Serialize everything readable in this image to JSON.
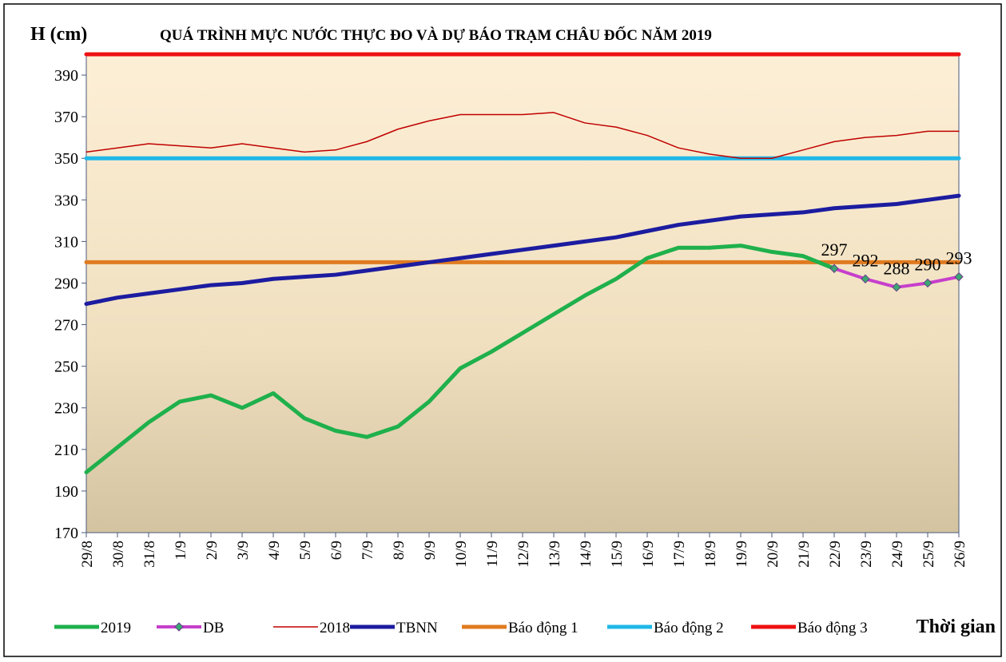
{
  "chart_data": {
    "type": "line",
    "title": "QUÁ TRÌNH MỰC NƯỚC THỰC ĐO VÀ DỰ BÁO TRẠM CHÂU ĐỐC NĂM 2019",
    "y_label": "H (cm)",
    "x_label": "Thời gian",
    "categories": [
      "29/8",
      "30/8",
      "31/8",
      "1/9",
      "2/9",
      "3/9",
      "4/9",
      "5/9",
      "6/9",
      "7/9",
      "8/9",
      "9/9",
      "10/9",
      "11/9",
      "12/9",
      "13/9",
      "14/9",
      "15/9",
      "16/9",
      "17/9",
      "18/9",
      "19/9",
      "20/9",
      "21/9",
      "22/9",
      "23/9",
      "24/9",
      "25/9",
      "26/9"
    ],
    "ylim": [
      170,
      400
    ],
    "yticks": [
      170,
      190,
      210,
      230,
      250,
      270,
      290,
      310,
      330,
      350,
      370,
      390
    ],
    "series": [
      {
        "name": "2019",
        "color": "#1fb04c",
        "values": [
          199,
          211,
          223,
          233,
          236,
          230,
          237,
          225,
          219,
          216,
          221,
          233,
          249,
          257,
          266,
          275,
          284,
          292,
          302,
          307,
          307,
          308,
          305,
          303,
          297,
          null,
          null,
          null,
          null
        ]
      },
      {
        "name": "DB",
        "color": "#c63fcc",
        "values": [
          null,
          null,
          null,
          null,
          null,
          null,
          null,
          null,
          null,
          null,
          null,
          null,
          null,
          null,
          null,
          null,
          null,
          null,
          null,
          null,
          null,
          null,
          null,
          null,
          297,
          292,
          288,
          290,
          293
        ]
      },
      {
        "name": "2018",
        "color": "#c00000",
        "values": [
          353,
          355,
          357,
          356,
          355,
          357,
          355,
          353,
          354,
          358,
          364,
          368,
          371,
          371,
          371,
          372,
          367,
          365,
          361,
          355,
          352,
          350,
          350,
          354,
          358,
          360,
          361,
          363,
          363
        ]
      },
      {
        "name": "TBNN",
        "color": "#1c1ca0",
        "values": [
          280,
          283,
          285,
          287,
          289,
          290,
          292,
          293,
          294,
          296,
          298,
          300,
          302,
          304,
          306,
          308,
          310,
          312,
          315,
          318,
          320,
          322,
          323,
          324,
          326,
          327,
          328,
          330,
          332
        ]
      },
      {
        "name": "Báo động 1",
        "color": "#e07b20",
        "values": [
          300,
          300,
          300,
          300,
          300,
          300,
          300,
          300,
          300,
          300,
          300,
          300,
          300,
          300,
          300,
          300,
          300,
          300,
          300,
          300,
          300,
          300,
          300,
          300,
          300,
          300,
          300,
          300,
          300
        ]
      },
      {
        "name": "Báo động 2",
        "color": "#1fb8e8",
        "values": [
          350,
          350,
          350,
          350,
          350,
          350,
          350,
          350,
          350,
          350,
          350,
          350,
          350,
          350,
          350,
          350,
          350,
          350,
          350,
          350,
          350,
          350,
          350,
          350,
          350,
          350,
          350,
          350,
          350
        ]
      },
      {
        "name": "Báo động 3",
        "color": "#ee1111",
        "values": [
          400,
          400,
          400,
          400,
          400,
          400,
          400,
          400,
          400,
          400,
          400,
          400,
          400,
          400,
          400,
          400,
          400,
          400,
          400,
          400,
          400,
          400,
          400,
          400,
          400,
          400,
          400,
          400,
          400
        ]
      }
    ]
  }
}
